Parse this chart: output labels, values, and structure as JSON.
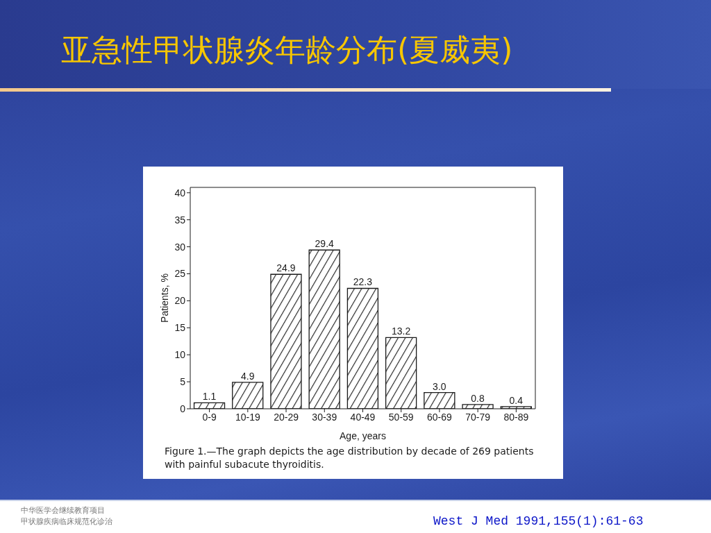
{
  "chart_data": {
    "type": "bar",
    "title": "亚急性甲状腺炎年龄分布(夏威夷)",
    "xlabel": "Age, years",
    "ylabel": "Patients, %",
    "categories": [
      "0-9",
      "10-19",
      "20-29",
      "30-39",
      "40-49",
      "50-59",
      "60-69",
      "70-79",
      "80-89"
    ],
    "values": [
      1.1,
      4.9,
      24.9,
      29.4,
      22.3,
      13.2,
      3.0,
      0.8,
      0.4
    ],
    "value_labels": [
      "1.1",
      "4.9",
      "24.9",
      "29.4",
      "22.3",
      "13.2",
      "3.0",
      "0.8",
      "0.4"
    ],
    "color": "#1a1a1a",
    "ylim": [
      0,
      41
    ],
    "yticks": [
      0,
      5,
      10,
      15,
      20,
      25,
      30,
      35,
      40
    ],
    "annotations": [
      "Figure 1.—The graph depicts the age distribution by decade of 269 patients with painful subacute thyroiditis.",
      "West J Med 1991,155(1):61-63",
      "中华医学会继续教育项目",
      "甲状腺疾病临床规范化诊治"
    ]
  }
}
